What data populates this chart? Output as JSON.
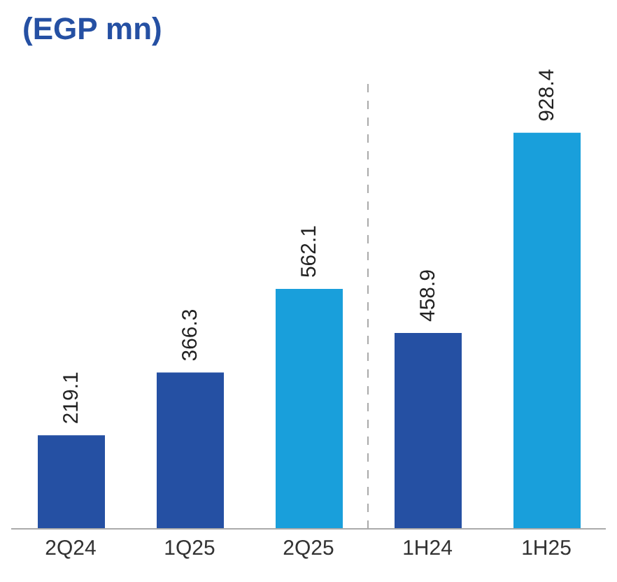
{
  "chart_data": {
    "type": "bar",
    "title": "(EGP mn)",
    "categories": [
      "2Q24",
      "1Q25",
      "2Q25",
      "1H24",
      "1H25"
    ],
    "values": [
      219.1,
      366.3,
      562.1,
      458.9,
      928.4
    ],
    "colors": [
      "#2550a3",
      "#2550a3",
      "#199fdb",
      "#2550a3",
      "#199fdb"
    ],
    "data_labels": true
  }
}
